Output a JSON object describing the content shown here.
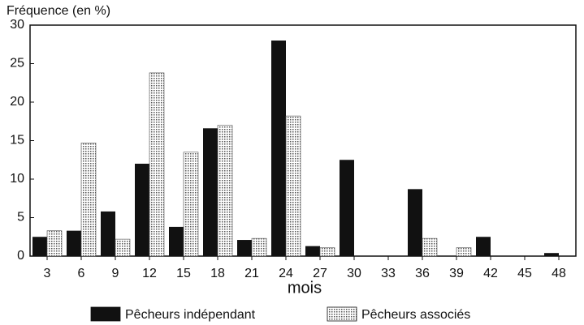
{
  "chart_data": {
    "type": "bar",
    "y_label": "Fréquence (en %)",
    "x_label": "mois",
    "categories": [
      "3",
      "6",
      "9",
      "12",
      "15",
      "18",
      "21",
      "24",
      "27",
      "30",
      "33",
      "36",
      "39",
      "42",
      "45",
      "48"
    ],
    "series": [
      {
        "name": "Pêcheurs indépendant",
        "color": "#111111",
        "values": [
          2.5,
          3.3,
          5.8,
          12,
          3.8,
          16.6,
          2.1,
          28,
          1.3,
          12.5,
          0,
          8.7,
          0,
          2.5,
          0,
          0.4
        ]
      },
      {
        "name": "Pêcheurs associés",
        "color": "#555555",
        "pattern": "dots",
        "values": [
          3.3,
          14.7,
          2.2,
          23.8,
          13.5,
          17,
          2.3,
          18.2,
          1.1,
          0,
          0,
          2.3,
          1.1,
          0,
          0,
          0
        ]
      }
    ],
    "ylim": [
      0,
      30
    ],
    "yticks": [
      0,
      5,
      10,
      15,
      20,
      25,
      30
    ],
    "legend": "bottom"
  }
}
